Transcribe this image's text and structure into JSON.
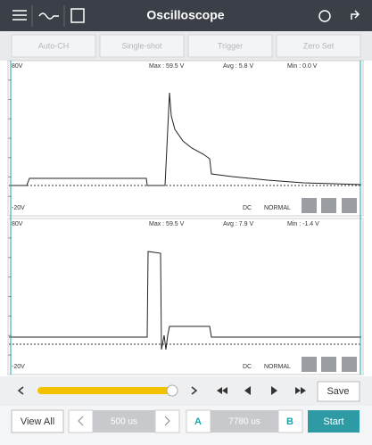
{
  "header": {
    "title": "Oscilloscope"
  },
  "toolbar": [
    "Auto-CH",
    "Single-shot",
    "Trigger",
    "Zero Set"
  ],
  "channels": [
    {
      "top": "80V",
      "max": "Max : 59.5 V",
      "avg": "Avg : 5.8 V",
      "min": "Min : 0.0 V",
      "bottom": "-20V",
      "coupling": "DC",
      "mode": "NORMAL"
    },
    {
      "top": "80V",
      "max": "Max : 59.5 V",
      "avg": "Avg : 7.9 V",
      "min": "Min : -1.4 V",
      "bottom": "-20V",
      "coupling": "DC",
      "mode": "NORMAL"
    }
  ],
  "controls": {
    "save": "Save"
  },
  "footer": {
    "view_all": "View All",
    "time_base": "500 us",
    "cursor_a": "A",
    "cursor_value": "7780 us",
    "cursor_b": "B",
    "start": "Start"
  }
}
